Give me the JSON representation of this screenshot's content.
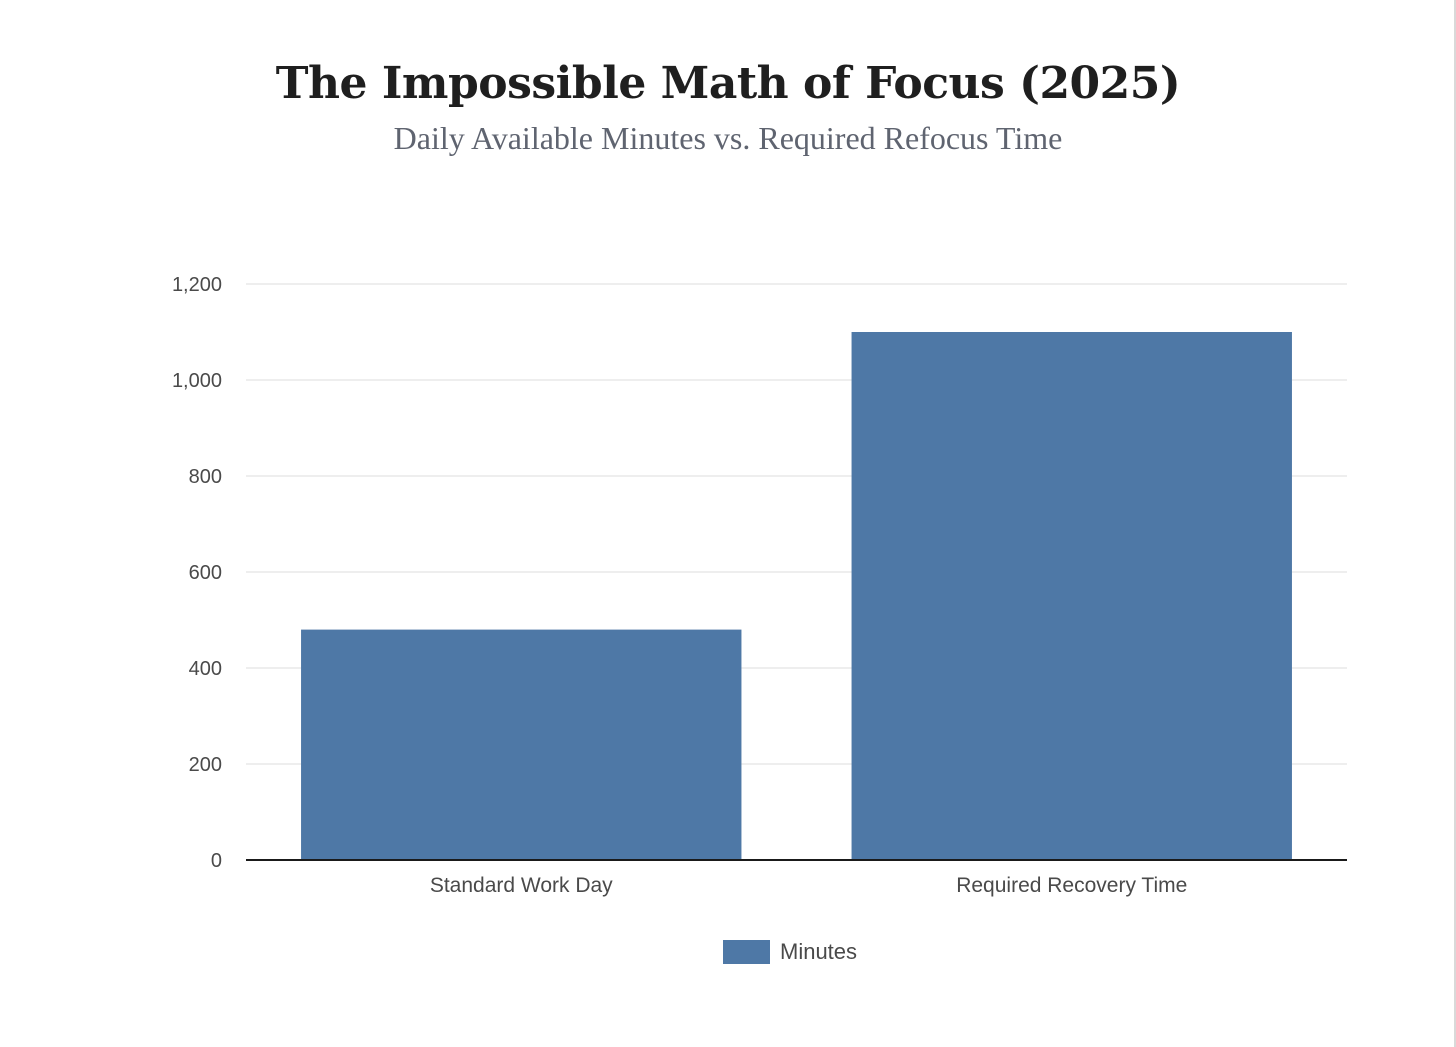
{
  "chart_data": {
    "type": "bar",
    "title": "The Impossible Math of Focus (2025)",
    "subtitle": "Daily Available Minutes vs. Required Refocus Time",
    "categories": [
      "Standard Work Day",
      "Required Recovery Time"
    ],
    "series": [
      {
        "name": "Minutes",
        "values": [
          480,
          1100
        ],
        "color": "#4e78a6"
      }
    ],
    "ylim": [
      0,
      1200
    ],
    "yticks": [
      0,
      200,
      400,
      600,
      800,
      1000,
      1200
    ],
    "ytick_labels": [
      "0",
      "200",
      "400",
      "600",
      "800",
      "1,000",
      "1,200"
    ],
    "xlabel": "",
    "ylabel": "",
    "grid": true,
    "legend_position": "bottom-center"
  }
}
